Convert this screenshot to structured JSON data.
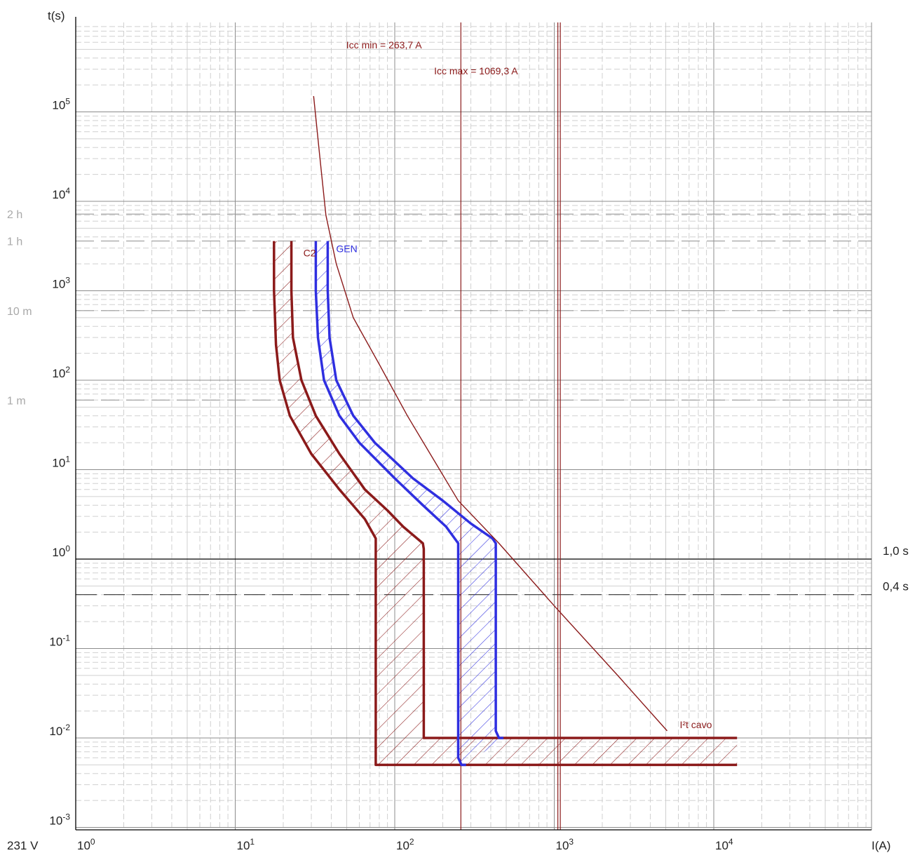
{
  "chart_data": {
    "type": "line",
    "title": "",
    "xlabel": "I(A)",
    "ylabel": "t(s)",
    "x_scale": "log",
    "y_scale": "log",
    "xlim": [
      1,
      100000
    ],
    "ylim": [
      0.001,
      1000000
    ],
    "grid": true,
    "voltage_label": "231 V",
    "x_ticks": [
      {
        "value": 1,
        "base": "10",
        "exp": "0"
      },
      {
        "value": 10,
        "base": "10",
        "exp": "1"
      },
      {
        "value": 100,
        "base": "10",
        "exp": "2"
      },
      {
        "value": 1000,
        "base": "10",
        "exp": "3"
      },
      {
        "value": 10000,
        "base": "10",
        "exp": "4"
      }
    ],
    "y_ticks": [
      {
        "value": 0.001,
        "base": "10",
        "exp": "-3"
      },
      {
        "value": 0.01,
        "base": "10",
        "exp": "-2"
      },
      {
        "value": 0.1,
        "base": "10",
        "exp": "-1"
      },
      {
        "value": 1,
        "base": "10",
        "exp": "0"
      },
      {
        "value": 10,
        "base": "10",
        "exp": "1"
      },
      {
        "value": 100,
        "base": "10",
        "exp": "2"
      },
      {
        "value": 1000,
        "base": "10",
        "exp": "3"
      },
      {
        "value": 10000,
        "base": "10",
        "exp": "4"
      },
      {
        "value": 100000,
        "base": "10",
        "exp": "5"
      }
    ],
    "time_markers": [
      {
        "label": "2 h",
        "value": 7200
      },
      {
        "label": "1 h",
        "value": 3600
      },
      {
        "label": "10 m",
        "value": 600
      },
      {
        "label": "1 m",
        "value": 60
      }
    ],
    "right_markers": [
      {
        "label": "1,0 s",
        "value": 1.0,
        "style": "solid"
      },
      {
        "label": "0,4 s",
        "value": 0.4,
        "style": "dashed"
      }
    ],
    "vertical_lines": [
      {
        "label": "Icc min = 263,7 A",
        "value": 263.7,
        "color": "#8b1a1a"
      },
      {
        "label": "Icc max = 1069,3 A",
        "value": 1069.3,
        "color": "#8b1a1a"
      }
    ],
    "series": [
      {
        "name": "C2",
        "color": "#8b1a1a",
        "fill_hatch": true,
        "upper_boundary": [
          [
            22.5,
            3600
          ],
          [
            22.5,
            1000
          ],
          [
            23,
            300
          ],
          [
            26,
            100
          ],
          [
            32,
            40
          ],
          [
            45,
            15
          ],
          [
            65,
            6
          ],
          [
            90,
            3.5
          ],
          [
            113,
            2.3
          ],
          [
            150,
            1.5
          ],
          [
            152,
            1.3
          ],
          [
            152,
            0.01
          ],
          [
            14000,
            0.01
          ]
        ],
        "lower_boundary": [
          [
            17.5,
            3600
          ],
          [
            17.5,
            1000
          ],
          [
            18,
            250
          ],
          [
            19,
            100
          ],
          [
            22,
            40
          ],
          [
            30,
            15
          ],
          [
            45,
            6
          ],
          [
            65,
            2.8
          ],
          [
            76,
            1.7
          ],
          [
            76,
            0.005
          ],
          [
            14000,
            0.005
          ]
        ]
      },
      {
        "name": "GEN",
        "color": "#2f2fe0",
        "fill_hatch": true,
        "upper_boundary": [
          [
            38,
            3600
          ],
          [
            38,
            1000
          ],
          [
            39,
            300
          ],
          [
            43,
            100
          ],
          [
            55,
            40
          ],
          [
            75,
            20
          ],
          [
            130,
            8
          ],
          [
            200,
            4.5
          ],
          [
            300,
            2.5
          ],
          [
            410,
            1.7
          ],
          [
            430,
            1.5
          ],
          [
            430,
            0.012
          ],
          [
            450,
            0.01
          ],
          [
            480,
            0.01
          ]
        ],
        "lower_boundary": [
          [
            32,
            3600
          ],
          [
            32,
            1000
          ],
          [
            33,
            300
          ],
          [
            36,
            100
          ],
          [
            45,
            40
          ],
          [
            60,
            20
          ],
          [
            100,
            8
          ],
          [
            150,
            4
          ],
          [
            210,
            2.3
          ],
          [
            250,
            1.5
          ],
          [
            250,
            0.006
          ],
          [
            262,
            0.005
          ],
          [
            280,
            0.005
          ]
        ]
      },
      {
        "name": "I²t cavo",
        "color": "#8b1a1a",
        "fill_hatch": false,
        "points": [
          [
            31,
            150000
          ],
          [
            34,
            30000
          ],
          [
            37,
            7000
          ],
          [
            43,
            2000
          ],
          [
            55,
            500
          ],
          [
            80,
            150
          ],
          [
            120,
            40
          ],
          [
            250,
            4.5
          ],
          [
            450,
            1.5
          ],
          [
            1000,
            0.3
          ],
          [
            2500,
            0.05
          ],
          [
            5100,
            0.012
          ]
        ]
      }
    ]
  }
}
